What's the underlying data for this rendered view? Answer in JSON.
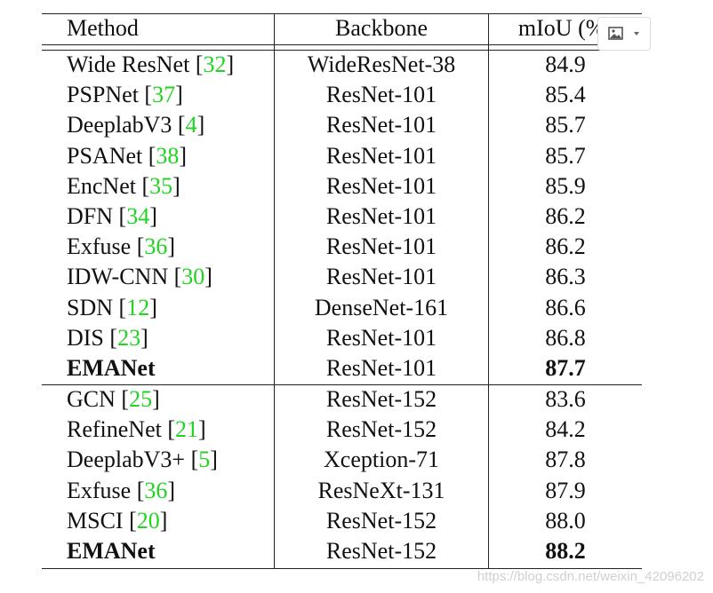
{
  "table": {
    "header": [
      "Method",
      "Backbone",
      "mIoU (%)"
    ],
    "groups": [
      [
        {
          "method": "Wide ResNet",
          "ref": "32",
          "backbone": "WideResNet-38",
          "miou": "84.9"
        },
        {
          "method": "PSPNet",
          "ref": "37",
          "backbone": "ResNet-101",
          "miou": "85.4"
        },
        {
          "method": "DeeplabV3",
          "ref": "4",
          "backbone": "ResNet-101",
          "miou": "85.7"
        },
        {
          "method": "PSANet",
          "ref": "38",
          "backbone": "ResNet-101",
          "miou": "85.7"
        },
        {
          "method": "EncNet",
          "ref": "35",
          "backbone": "ResNet-101",
          "miou": "85.9"
        },
        {
          "method": "DFN",
          "ref": "34",
          "backbone": "ResNet-101",
          "miou": "86.2"
        },
        {
          "method": "Exfuse",
          "ref": "36",
          "backbone": "ResNet-101",
          "miou": "86.2"
        },
        {
          "method": "IDW-CNN",
          "ref": "30",
          "backbone": "ResNet-101",
          "miou": "86.3"
        },
        {
          "method": "SDN",
          "ref": "12",
          "backbone": "DenseNet-161",
          "miou": "86.6"
        },
        {
          "method": "DIS",
          "ref": "23",
          "backbone": "ResNet-101",
          "miou": "86.8"
        },
        {
          "method": "EMANet",
          "bold": true,
          "backbone": "ResNet-101",
          "miou": "87.7"
        }
      ],
      [
        {
          "method": "GCN",
          "ref": "25",
          "backbone": "ResNet-152",
          "miou": "83.6"
        },
        {
          "method": "RefineNet",
          "ref": "21",
          "backbone": "ResNet-152",
          "miou": "84.2"
        },
        {
          "method": "DeeplabV3+",
          "ref": "5",
          "backbone": "Xception-71",
          "miou": "87.8"
        },
        {
          "method": "Exfuse",
          "ref": "36",
          "backbone": "ResNeXt-131",
          "miou": "87.9"
        },
        {
          "method": "MSCI",
          "ref": "20",
          "backbone": "ResNet-152",
          "miou": "88.0"
        },
        {
          "method": "EMANet",
          "bold": true,
          "backbone": "ResNet-152",
          "miou": "88.2"
        }
      ]
    ]
  },
  "watermark": "https://blog.csdn.net/weixin_42096202"
}
